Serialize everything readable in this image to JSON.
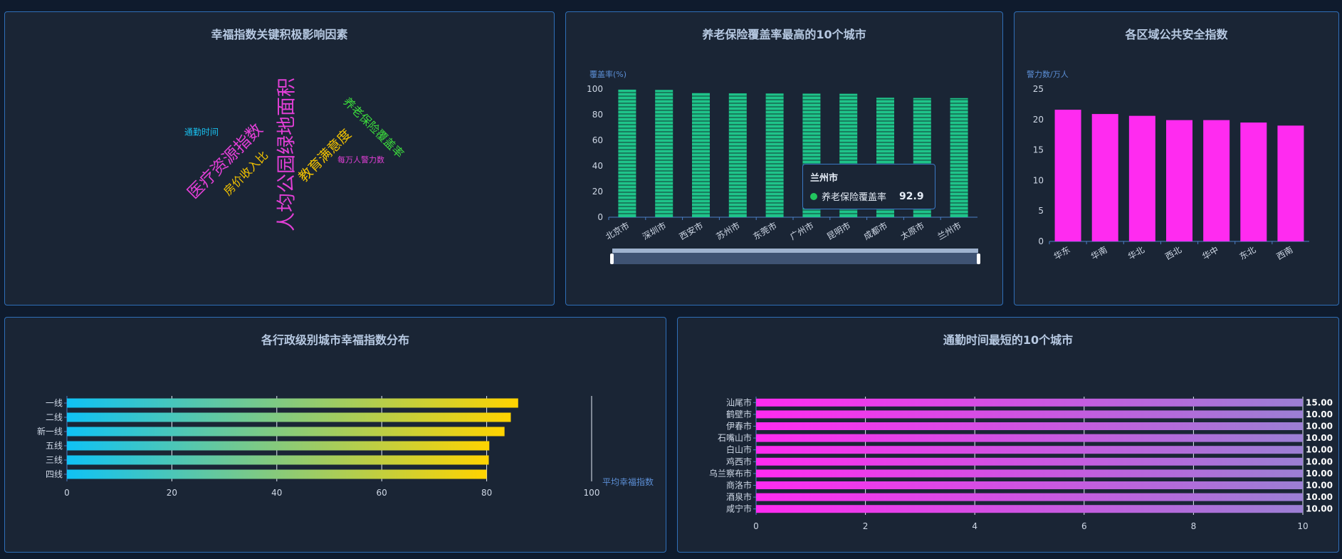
{
  "panels": {
    "wordcloud": {
      "title": "幸福指数关键积极影响因素"
    },
    "pension": {
      "title": "养老保险覆盖率最高的10个城市"
    },
    "safety": {
      "title": "各区域公共安全指数"
    },
    "admin": {
      "title": "各行政级别城市幸福指数分布"
    },
    "commute": {
      "title": "通勤时间最短的10个城市"
    }
  },
  "wordcloud_words": [
    {
      "text": "人均公园绿地面积",
      "color": "#e23fd6"
    },
    {
      "text": "医疗资源指数",
      "color": "#e23fd6"
    },
    {
      "text": "养老保险覆盖率",
      "color": "#3ddc3d"
    },
    {
      "text": "教育满意度",
      "color": "#f2c200"
    },
    {
      "text": "房价收入比",
      "color": "#f2c200"
    },
    {
      "text": "通勤时间",
      "color": "#19c1f0"
    },
    {
      "text": "每万人警力数",
      "color": "#e23fd6"
    }
  ],
  "tooltip": {
    "title": "兰州市",
    "series": "养老保险覆盖率",
    "value": "92.9"
  },
  "chart_data": [
    {
      "id": "pension",
      "type": "bar",
      "ylabel": "覆盖率(%)",
      "ylim": [
        0,
        100
      ],
      "yticks": [
        "0",
        "20",
        "40",
        "60",
        "80",
        "100"
      ],
      "categories": [
        "北京市",
        "深圳市",
        "西安市",
        "苏州市",
        "东莞市",
        "广州市",
        "昆明市",
        "成都市",
        "太原市",
        "兰州市"
      ],
      "values": [
        99.5,
        99.3,
        96.8,
        96.6,
        96.5,
        96.4,
        96.3,
        93.2,
        93.0,
        92.9
      ],
      "color": "#1fc48a",
      "grid": false,
      "datazoom": true
    },
    {
      "id": "safety",
      "type": "bar",
      "ylabel": "警力数/万人",
      "ylim": [
        0,
        25
      ],
      "yticks": [
        "0",
        "5",
        "10",
        "15",
        "20",
        "25"
      ],
      "categories": [
        "华东",
        "华南",
        "华北",
        "西北",
        "华中",
        "东北",
        "西南"
      ],
      "values": [
        21.6,
        20.9,
        20.6,
        19.9,
        19.9,
        19.5,
        19.0
      ],
      "color": "#ff2bf0",
      "grid": false
    },
    {
      "id": "admin",
      "type": "bar",
      "orientation": "horizontal",
      "xlabel": "平均幸福指数",
      "xlim": [
        0,
        100
      ],
      "xticks": [
        "0",
        "20",
        "40",
        "60",
        "80",
        "100"
      ],
      "categories": [
        "一线",
        "二线",
        "新一线",
        "五线",
        "三线",
        "四线"
      ],
      "values": [
        86,
        84.6,
        83.4,
        80.5,
        80.4,
        80.0
      ],
      "color_start": "#0fc2f5",
      "color_end": "#ffd300",
      "grid": true
    },
    {
      "id": "commute",
      "type": "bar",
      "orientation": "horizontal",
      "xlim": [
        0,
        10
      ],
      "xticks": [
        "0",
        "2",
        "4",
        "6",
        "8",
        "10"
      ],
      "categories": [
        "汕尾市",
        "鹤壁市",
        "伊春市",
        "石嘴山市",
        "白山市",
        "鸡西市",
        "乌兰察布市",
        "商洛市",
        "酒泉市",
        "咸宁市"
      ],
      "values": [
        15,
        10,
        10,
        10,
        10,
        10,
        10,
        10,
        10,
        10
      ],
      "value_labels": [
        "15.00",
        "10.00",
        "10.00",
        "10.00",
        "10.00",
        "10.00",
        "10.00",
        "10.00",
        "10.00",
        "10.00"
      ],
      "color_start": "#ff2bf0",
      "color_end": "#9b7fd4",
      "grid": true
    }
  ]
}
